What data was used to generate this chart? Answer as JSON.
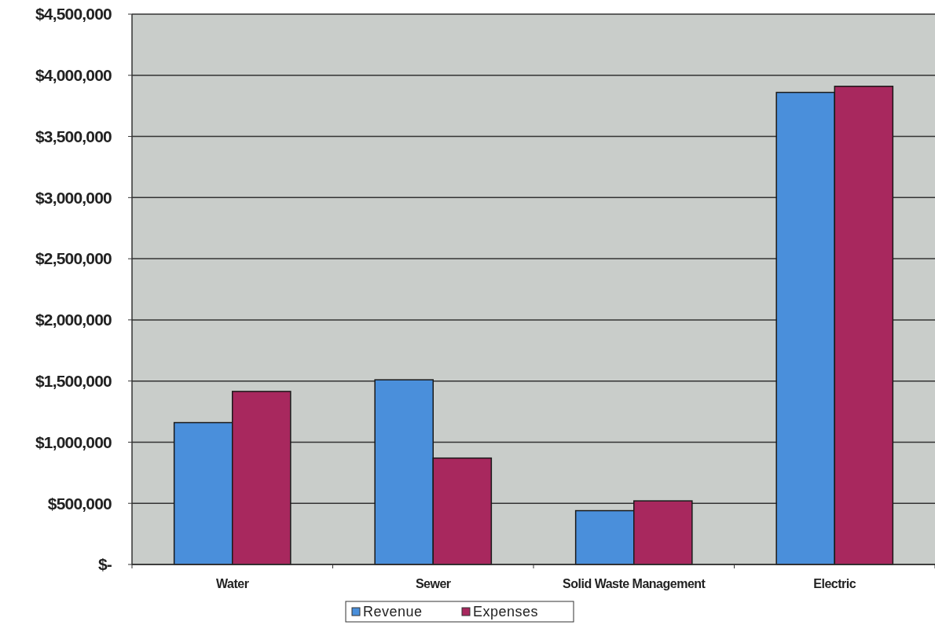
{
  "chart_data": {
    "type": "bar",
    "categories": [
      "Water",
      "Sewer",
      "Solid Waste Management",
      "Electric"
    ],
    "series": [
      {
        "name": "Revenue",
        "color": "#4a8fdb",
        "values": [
          1160000,
          1510000,
          440000,
          3860000
        ]
      },
      {
        "name": "Expenses",
        "color": "#a8285e",
        "values": [
          1415000,
          870000,
          520000,
          3910000
        ]
      }
    ],
    "ylim": [
      0,
      4500000
    ],
    "yticks": [
      {
        "value": 0,
        "label": "$-"
      },
      {
        "value": 500000,
        "label": "$500,000"
      },
      {
        "value": 1000000,
        "label": "$1,000,000"
      },
      {
        "value": 1500000,
        "label": "$1,500,000"
      },
      {
        "value": 2000000,
        "label": "$2,000,000"
      },
      {
        "value": 2500000,
        "label": "$2,500,000"
      },
      {
        "value": 3000000,
        "label": "$3,000,000"
      },
      {
        "value": 3500000,
        "label": "$3,500,000"
      },
      {
        "value": 4000000,
        "label": "$4,000,000"
      },
      {
        "value": 4500000,
        "label": "$4,500,000"
      }
    ],
    "grid": "y",
    "legend": "bottom"
  }
}
